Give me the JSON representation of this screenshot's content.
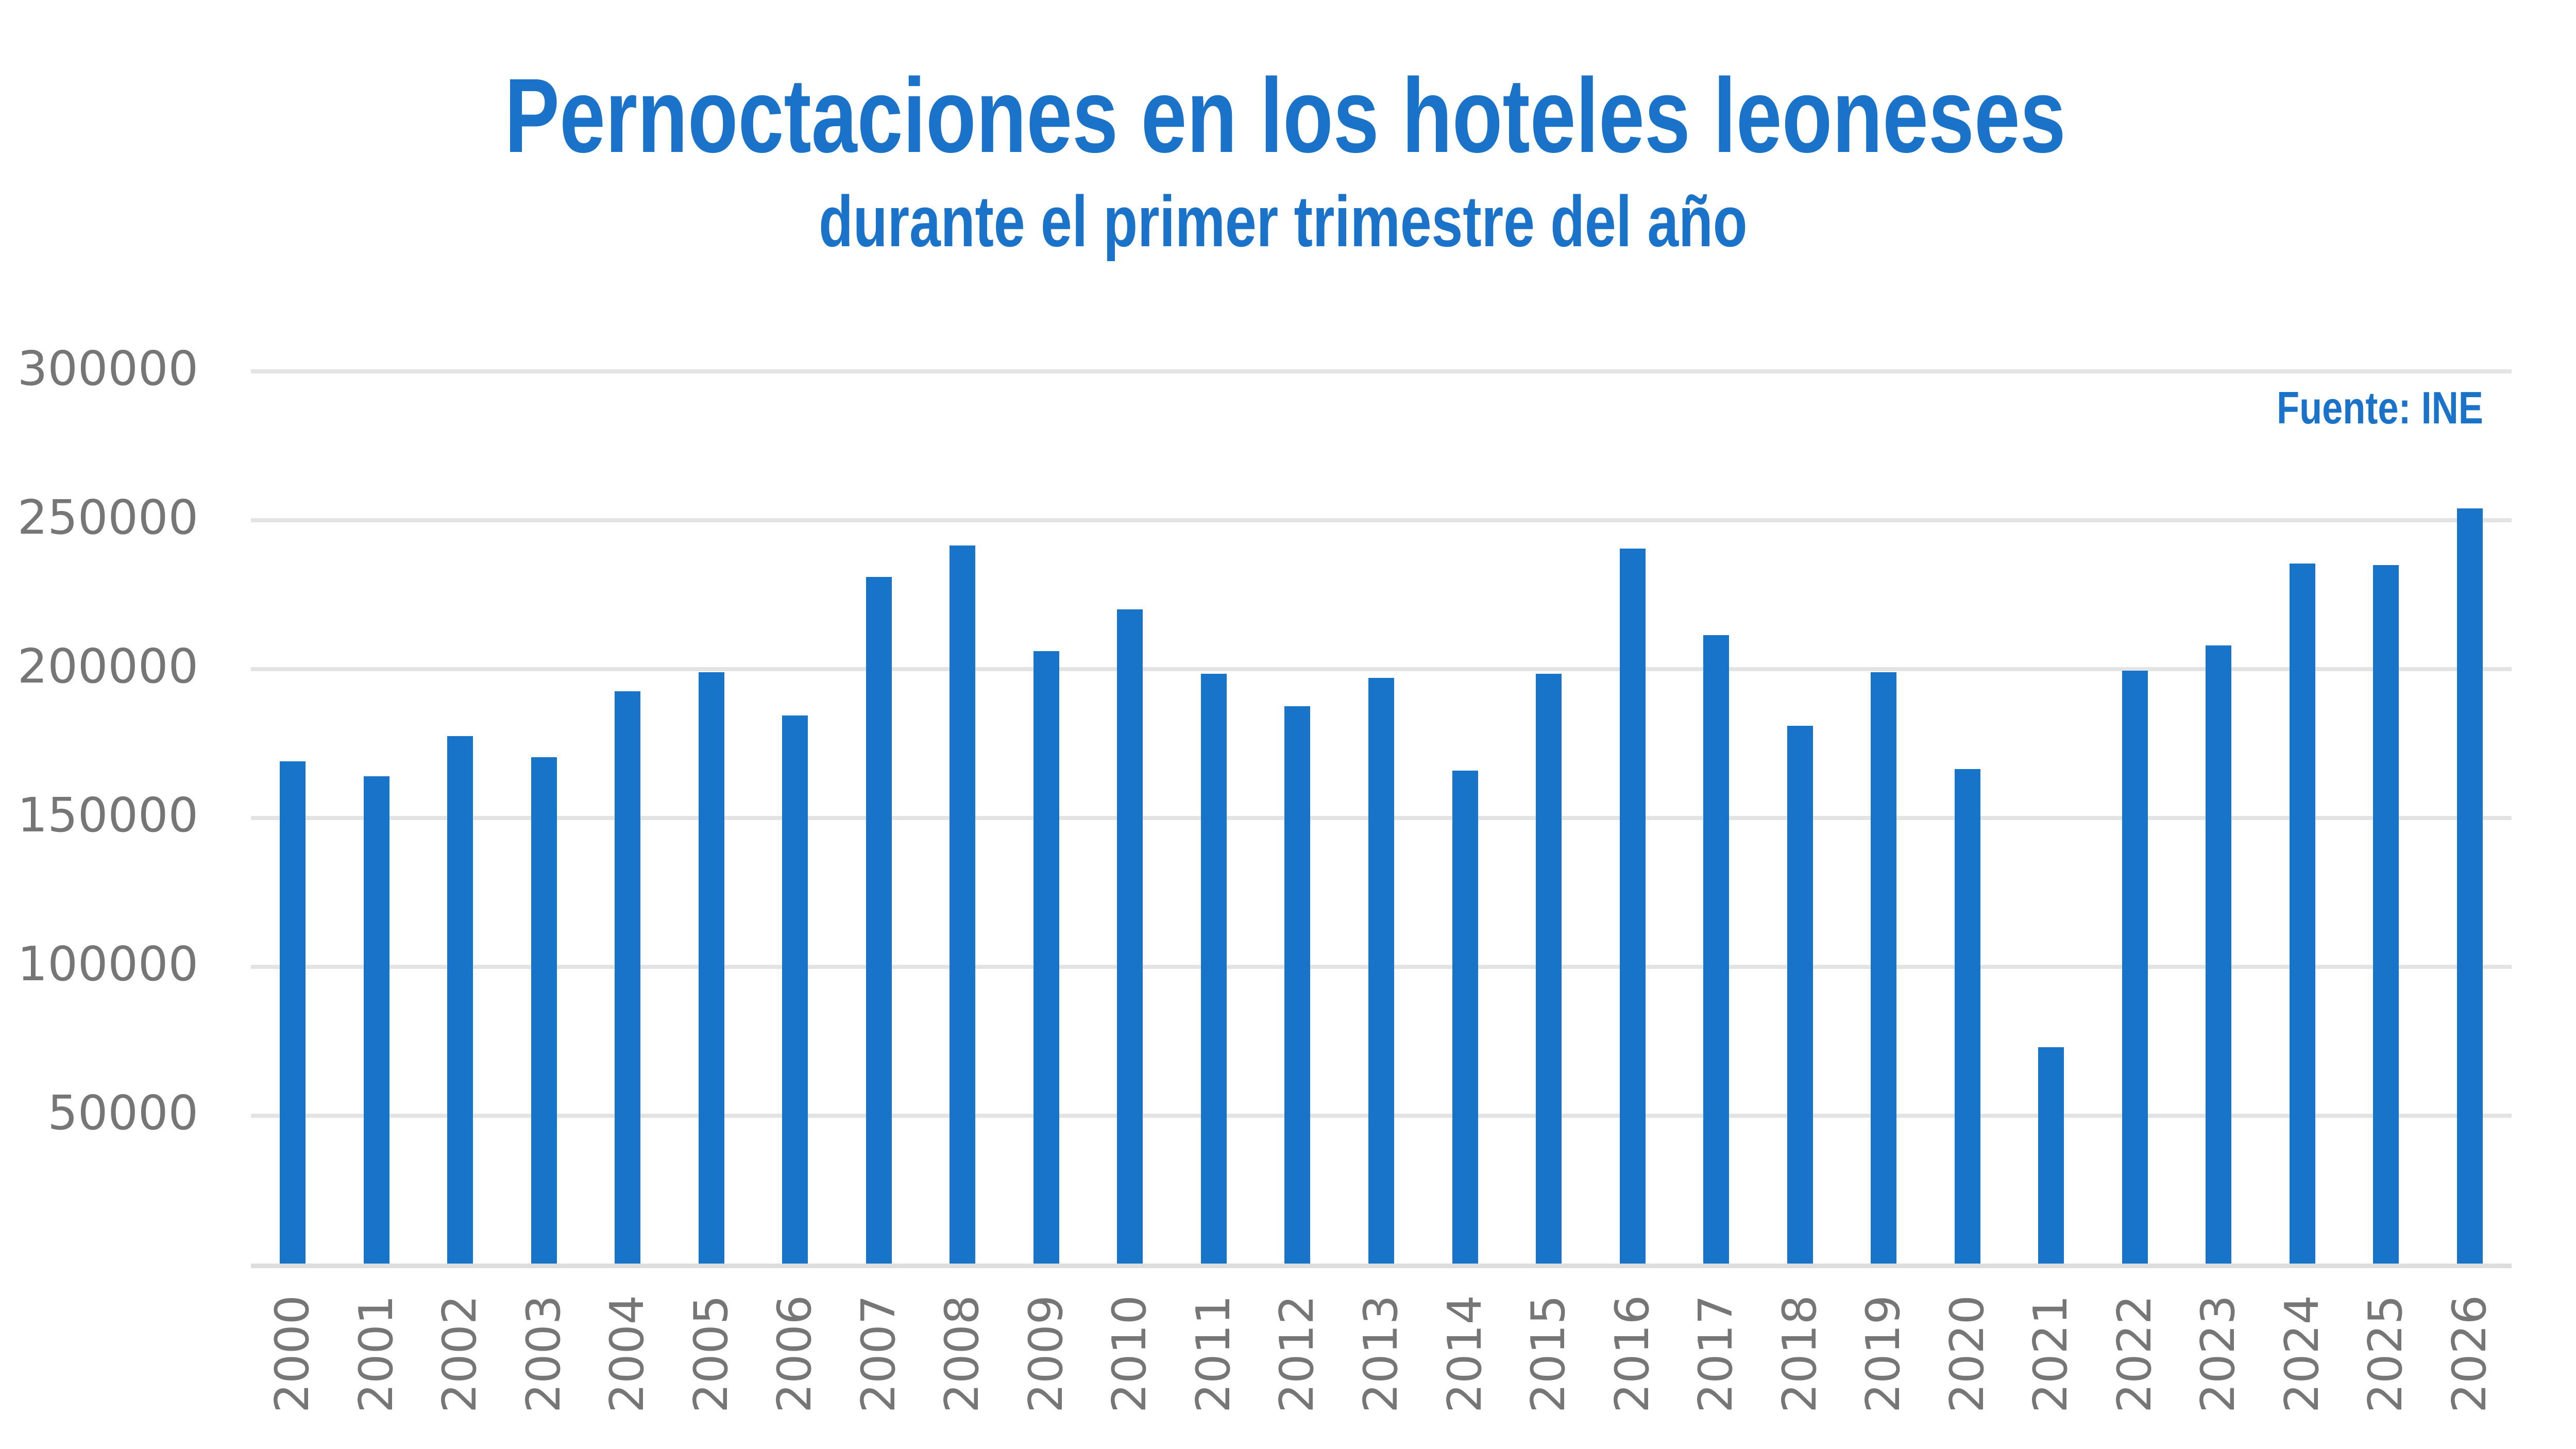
{
  "header": {
    "title": "Pernoctaciones en los hoteles leoneses",
    "subtitle": "durante el primer trimestre del año",
    "source": "Fuente: INE"
  },
  "colors": {
    "bar": "#1874c8",
    "title": "#1a73c8",
    "axis_text": "#767676",
    "gridline": "#e3e3e3"
  },
  "chart_data": {
    "type": "bar",
    "title": "Pernoctaciones en los hoteles leoneses",
    "subtitle": "durante el primer trimestre del año",
    "annotation": "Fuente: INE",
    "xlabel": "",
    "ylabel": "",
    "ylim": [
      0,
      300000
    ],
    "yticks": [
      50000,
      100000,
      150000,
      200000,
      250000,
      300000
    ],
    "ytick_labels": [
      "50000",
      "100000",
      "150000",
      "200000",
      "250000",
      "300000"
    ],
    "grid": true,
    "legend": null,
    "x_label_rotation": -90,
    "categories": [
      "2000",
      "2001",
      "2002",
      "2003",
      "2004",
      "2005",
      "2006",
      "2007",
      "2008",
      "2009",
      "2010",
      "2011",
      "2012",
      "2013",
      "2014",
      "2015",
      "2016",
      "2017",
      "2018",
      "2019",
      "2020",
      "2021",
      "2022",
      "2023",
      "2024",
      "2025",
      "2026"
    ],
    "values": [
      169000,
      164000,
      177500,
      170500,
      192500,
      199000,
      184500,
      231000,
      241500,
      206000,
      220000,
      198500,
      187500,
      197000,
      166000,
      198500,
      240500,
      211500,
      181000,
      199000,
      166500,
      73000,
      199500,
      208000,
      235500,
      235000,
      254000
    ]
  }
}
